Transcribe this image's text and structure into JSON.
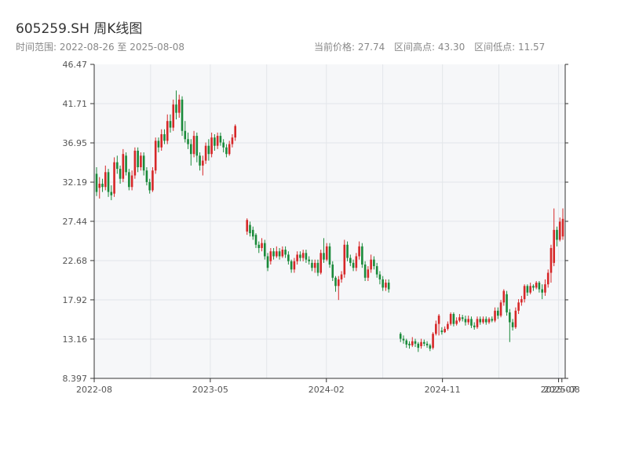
{
  "header": {
    "title": "605259.SH 周K线图",
    "range_label": "时间范围: 2022-08-26 至 2025-08-08",
    "current_price": "当前价格: 27.74",
    "range_high": "区间高点: 43.30",
    "range_low": "区间低点: 11.57"
  },
  "colors": {
    "up": "#d62728",
    "down": "#1a8a3a",
    "axis": "#333333",
    "grid": "#e3e6ea",
    "plot_bg": "#f6f7f9"
  },
  "chart_data": {
    "type": "candlestick",
    "title": "605259.SH 周K线图",
    "xlabel": "",
    "ylabel": "",
    "ylim": [
      8.397,
      46.47
    ],
    "y_ticks": [
      "46.47",
      "41.71",
      "36.95",
      "32.19",
      "27.44",
      "22.68",
      "17.92",
      "13.16",
      "8.397"
    ],
    "x_ticks": [
      "2022-08",
      "2023-05",
      "2024-02",
      "2024-11",
      "2025-07",
      "2025-08"
    ],
    "x_tick_positions": [
      0,
      35,
      70,
      105,
      140,
      141
    ],
    "x_vgrid_positions": [
      17,
      35,
      52,
      70,
      87,
      105,
      122,
      140
    ],
    "x_count": 142,
    "ohlc": [
      [
        0,
        33.2,
        31.0,
        34.0,
        30.5
      ],
      [
        1,
        31.5,
        32.0,
        32.8,
        30.2
      ],
      [
        2,
        32.0,
        31.6,
        32.6,
        31.0
      ],
      [
        3,
        31.6,
        33.4,
        34.2,
        31.2
      ],
      [
        4,
        33.4,
        31.0,
        33.8,
        30.4
      ],
      [
        5,
        31.0,
        30.6,
        31.8,
        30.0
      ],
      [
        6,
        30.8,
        34.6,
        35.2,
        30.4
      ],
      [
        7,
        34.6,
        33.8,
        35.4,
        33.2
      ],
      [
        8,
        33.8,
        32.6,
        34.2,
        32.0
      ],
      [
        9,
        32.6,
        35.6,
        36.2,
        32.2
      ],
      [
        10,
        35.4,
        33.4,
        35.8,
        33.0
      ],
      [
        11,
        33.4,
        31.6,
        33.8,
        31.2
      ],
      [
        12,
        31.6,
        33.0,
        33.6,
        31.2
      ],
      [
        13,
        33.0,
        36.0,
        36.4,
        32.6
      ],
      [
        14,
        36.0,
        34.0,
        36.4,
        33.4
      ],
      [
        15,
        34.0,
        35.4,
        35.8,
        33.6
      ],
      [
        16,
        35.4,
        33.6,
        35.8,
        33.0
      ],
      [
        17,
        33.6,
        32.2,
        34.0,
        31.8
      ],
      [
        18,
        32.2,
        31.2,
        32.6,
        30.8
      ],
      [
        19,
        31.2,
        33.6,
        34.0,
        31.0
      ],
      [
        20,
        33.6,
        37.2,
        37.6,
        33.2
      ],
      [
        21,
        37.2,
        36.4,
        37.6,
        35.8
      ],
      [
        22,
        36.4,
        38.0,
        38.6,
        36.0
      ],
      [
        23,
        38.0,
        37.2,
        38.6,
        36.8
      ],
      [
        24,
        37.2,
        39.6,
        40.4,
        36.8
      ],
      [
        25,
        39.6,
        38.8,
        40.4,
        38.2
      ],
      [
        26,
        38.8,
        41.6,
        42.2,
        38.4
      ],
      [
        27,
        41.6,
        40.6,
        43.3,
        39.8
      ],
      [
        28,
        40.6,
        42.2,
        42.8,
        40.0
      ],
      [
        29,
        42.2,
        38.4,
        42.6,
        37.8
      ],
      [
        30,
        38.4,
        37.4,
        39.6,
        37.0
      ],
      [
        31,
        37.4,
        36.8,
        38.2,
        36.2
      ],
      [
        32,
        36.8,
        35.6,
        37.4,
        34.2
      ],
      [
        33,
        35.6,
        37.8,
        38.4,
        35.2
      ],
      [
        34,
        37.8,
        35.4,
        38.2,
        34.6
      ],
      [
        35,
        35.4,
        34.2,
        35.8,
        33.6
      ],
      [
        36,
        34.2,
        34.8,
        35.4,
        33.0
      ],
      [
        37,
        34.8,
        36.6,
        37.0,
        34.4
      ],
      [
        38,
        36.6,
        35.6,
        37.4,
        34.8
      ],
      [
        39,
        35.6,
        37.6,
        38.2,
        35.2
      ],
      [
        40,
        37.6,
        36.6,
        38.0,
        36.0
      ],
      [
        41,
        36.6,
        37.8,
        38.2,
        36.2
      ],
      [
        42,
        37.8,
        37.0,
        38.2,
        36.6
      ],
      [
        43,
        37.0,
        36.4,
        37.4,
        35.8
      ],
      [
        44,
        36.4,
        35.6,
        36.8,
        35.2
      ],
      [
        45,
        35.6,
        36.8,
        37.2,
        35.4
      ],
      [
        46,
        36.8,
        37.6,
        38.0,
        36.4
      ],
      [
        47,
        37.6,
        39.0,
        39.2,
        37.2
      ],
      [
        51,
        26.2,
        27.6,
        27.8,
        25.8
      ],
      [
        52,
        27.0,
        26.0,
        27.4,
        25.6
      ],
      [
        53,
        26.4,
        25.6,
        26.8,
        25.2
      ],
      [
        54,
        25.8,
        24.6,
        26.0,
        24.2
      ],
      [
        55,
        24.6,
        24.2,
        25.0,
        23.6
      ],
      [
        56,
        24.2,
        24.8,
        25.4,
        23.8
      ],
      [
        57,
        24.8,
        23.2,
        25.2,
        22.8
      ],
      [
        58,
        23.2,
        21.8,
        23.6,
        21.4
      ],
      [
        59,
        22.6,
        23.8,
        24.2,
        22.2
      ],
      [
        60,
        23.8,
        23.2,
        24.2,
        22.8
      ],
      [
        61,
        23.2,
        23.8,
        24.4,
        23.0
      ],
      [
        62,
        23.8,
        23.2,
        24.2,
        22.8
      ],
      [
        63,
        23.2,
        24.0,
        24.4,
        23.0
      ],
      [
        64,
        24.0,
        23.4,
        24.4,
        23.0
      ],
      [
        65,
        23.4,
        22.6,
        23.8,
        22.2
      ],
      [
        66,
        22.6,
        21.6,
        22.8,
        21.2
      ],
      [
        67,
        21.6,
        22.6,
        23.0,
        21.2
      ],
      [
        68,
        22.6,
        23.4,
        23.8,
        22.2
      ],
      [
        69,
        23.4,
        23.0,
        23.8,
        22.6
      ],
      [
        70,
        23.0,
        23.6,
        24.0,
        22.6
      ],
      [
        71,
        23.6,
        22.8,
        24.0,
        22.4
      ],
      [
        72,
        22.8,
        22.6,
        23.2,
        22.2
      ],
      [
        73,
        22.4,
        21.8,
        22.8,
        21.4
      ],
      [
        74,
        21.8,
        22.4,
        22.8,
        21.2
      ],
      [
        75,
        22.4,
        21.2,
        22.8,
        20.8
      ],
      [
        76,
        21.2,
        23.6,
        24.0,
        21.0
      ],
      [
        77,
        23.6,
        22.8,
        25.4,
        22.4
      ],
      [
        78,
        22.8,
        24.4,
        24.8,
        22.6
      ],
      [
        79,
        24.4,
        22.2,
        24.8,
        21.8
      ],
      [
        80,
        22.2,
        20.6,
        22.6,
        20.2
      ],
      [
        81,
        20.6,
        19.6,
        20.8,
        18.9
      ],
      [
        82,
        19.6,
        20.4,
        20.8,
        17.9
      ],
      [
        83,
        20.4,
        21.0,
        21.4,
        20.0
      ],
      [
        84,
        21.0,
        24.6,
        25.2,
        20.6
      ],
      [
        85,
        24.6,
        23.0,
        25.0,
        22.6
      ],
      [
        86,
        23.0,
        22.4,
        23.4,
        22.0
      ],
      [
        87,
        22.4,
        21.8,
        22.8,
        21.4
      ],
      [
        88,
        21.8,
        23.2,
        23.6,
        21.4
      ],
      [
        89,
        23.2,
        24.4,
        25.0,
        22.8
      ],
      [
        90,
        24.4,
        22.2,
        24.8,
        21.8
      ],
      [
        91,
        22.2,
        20.6,
        22.6,
        20.2
      ],
      [
        92,
        20.6,
        21.6,
        22.0,
        20.2
      ],
      [
        93,
        21.6,
        22.8,
        23.4,
        21.2
      ],
      [
        94,
        22.8,
        22.0,
        23.2,
        21.6
      ],
      [
        95,
        22.0,
        21.0,
        22.4,
        20.6
      ],
      [
        96,
        21.0,
        20.4,
        21.4,
        19.8
      ],
      [
        97,
        20.4,
        19.4,
        20.8,
        19.0
      ],
      [
        98,
        19.4,
        20.0,
        20.4,
        19.0
      ],
      [
        99,
        20.0,
        19.2,
        20.4,
        18.8
      ],
      [
        103,
        13.8,
        13.2,
        14.0,
        12.8
      ],
      [
        104,
        13.2,
        13.0,
        13.6,
        12.6
      ],
      [
        105,
        13.0,
        12.5,
        13.2,
        12.1
      ],
      [
        106,
        12.6,
        12.4,
        12.9,
        12.0
      ],
      [
        107,
        12.4,
        12.9,
        13.4,
        12.2
      ],
      [
        108,
        12.9,
        12.6,
        13.2,
        12.2
      ],
      [
        109,
        12.6,
        12.1,
        12.8,
        11.6
      ],
      [
        110,
        12.3,
        12.8,
        13.2,
        12.0
      ],
      [
        111,
        12.8,
        12.6,
        13.1,
        12.3
      ],
      [
        112,
        12.6,
        12.4,
        12.9,
        12.1
      ],
      [
        113,
        12.4,
        12.0,
        12.6,
        11.7
      ],
      [
        114,
        12.1,
        13.8,
        14.0,
        11.9
      ],
      [
        115,
        13.8,
        15.0,
        15.4,
        13.6
      ],
      [
        116,
        15.0,
        16.0,
        16.2,
        13.6
      ],
      [
        117,
        14.2,
        14.0,
        14.6,
        13.7
      ],
      [
        118,
        14.0,
        14.4,
        14.7,
        13.9
      ],
      [
        119,
        14.4,
        15.0,
        15.3,
        14.2
      ],
      [
        120,
        15.0,
        16.2,
        16.4,
        14.8
      ],
      [
        121,
        16.2,
        15.0,
        16.4,
        14.7
      ],
      [
        122,
        15.0,
        15.4,
        15.8,
        14.8
      ],
      [
        123,
        15.4,
        15.8,
        16.2,
        15.2
      ],
      [
        124,
        15.8,
        15.6,
        16.1,
        15.3
      ],
      [
        125,
        15.6,
        15.2,
        16.0,
        14.8
      ],
      [
        126,
        15.2,
        15.6,
        16.0,
        14.9
      ],
      [
        127,
        15.6,
        14.8,
        15.9,
        14.5
      ],
      [
        128,
        14.8,
        14.6,
        15.2,
        14.3
      ],
      [
        129,
        14.6,
        15.6,
        15.9,
        14.4
      ],
      [
        130,
        15.6,
        15.2,
        15.9,
        14.9
      ],
      [
        131,
        15.2,
        15.6,
        15.9,
        15.0
      ],
      [
        132,
        15.6,
        15.2,
        15.9,
        14.9
      ],
      [
        133,
        15.2,
        15.6,
        15.8,
        15.0
      ],
      [
        134,
        15.6,
        15.4,
        15.9,
        15.2
      ],
      [
        135,
        15.4,
        16.6,
        17.0,
        15.2
      ],
      [
        136,
        16.6,
        16.0,
        17.0,
        15.6
      ],
      [
        137,
        16.0,
        17.6,
        17.9,
        15.8
      ],
      [
        138,
        17.6,
        19.0,
        19.2,
        17.2
      ],
      [
        139,
        18.6,
        16.4,
        19.0,
        16.0
      ],
      [
        140,
        16.4,
        15.2,
        16.8,
        12.8
      ],
      [
        141,
        15.2,
        14.6,
        15.6,
        14.2
      ],
      [
        142,
        14.6,
        16.6,
        17.0,
        14.4
      ],
      [
        143,
        16.6,
        17.6,
        18.0,
        16.2
      ],
      [
        144,
        17.6,
        18.0,
        18.4,
        17.2
      ],
      [
        145,
        18.0,
        19.6,
        19.8,
        17.6
      ],
      [
        146,
        19.6,
        18.8,
        19.8,
        18.4
      ],
      [
        147,
        18.8,
        19.6,
        20.0,
        18.6
      ],
      [
        148,
        19.6,
        19.4,
        19.8,
        19.0
      ],
      [
        149,
        19.4,
        20.0,
        20.2,
        19.2
      ],
      [
        150,
        20.0,
        19.2,
        20.2,
        18.8
      ],
      [
        151,
        19.2,
        18.8,
        19.8,
        18.0
      ],
      [
        152,
        18.8,
        19.8,
        20.4,
        18.4
      ],
      [
        153,
        19.8,
        21.2,
        21.6,
        19.4
      ],
      [
        154,
        21.2,
        24.2,
        24.6,
        20.0
      ],
      [
        155,
        22.4,
        26.4,
        29.0,
        22.0
      ],
      [
        156,
        26.4,
        25.2,
        26.8,
        24.4
      ],
      [
        157,
        25.2,
        27.4,
        27.9,
        25.0
      ],
      [
        158,
        25.6,
        27.74,
        29.0,
        25.2
      ]
    ]
  }
}
